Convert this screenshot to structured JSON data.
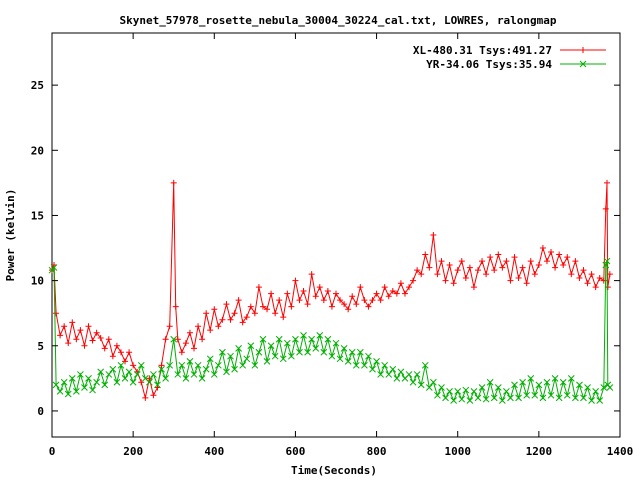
{
  "chart_data": {
    "type": "line",
    "title": "Skynet_57978_rosette_nebula_30004_30224_cal.txt, LOWRES, ralongmap",
    "xlabel": "Time(Seconds)",
    "ylabel": "Power (kelvin)",
    "xlim": [
      0,
      1400
    ],
    "ylim": [
      -2,
      29
    ],
    "x_ticks": [
      0,
      200,
      400,
      600,
      800,
      1000,
      1200,
      1400
    ],
    "y_ticks": [
      0,
      5,
      10,
      15,
      20,
      25
    ],
    "grid": false,
    "legend_position": "top-right",
    "series": [
      {
        "name": "XL-480.31 Tsys:491.27",
        "color": "#ff0000",
        "marker": "+",
        "points": [
          [
            0,
            10.8
          ],
          [
            5,
            11.2
          ],
          [
            10,
            7.5
          ],
          [
            20,
            5.8
          ],
          [
            30,
            6.5
          ],
          [
            40,
            5.2
          ],
          [
            50,
            6.8
          ],
          [
            60,
            5.5
          ],
          [
            70,
            6.2
          ],
          [
            80,
            5.0
          ],
          [
            90,
            6.5
          ],
          [
            100,
            5.4
          ],
          [
            110,
            6.0
          ],
          [
            120,
            5.6
          ],
          [
            130,
            4.8
          ],
          [
            140,
            5.5
          ],
          [
            150,
            4.2
          ],
          [
            160,
            5.0
          ],
          [
            170,
            4.5
          ],
          [
            180,
            3.8
          ],
          [
            190,
            4.5
          ],
          [
            200,
            3.5
          ],
          [
            210,
            3.0
          ],
          [
            220,
            2.2
          ],
          [
            230,
            1.0
          ],
          [
            240,
            2.5
          ],
          [
            250,
            1.2
          ],
          [
            260,
            1.8
          ],
          [
            270,
            3.5
          ],
          [
            280,
            5.5
          ],
          [
            290,
            6.5
          ],
          [
            300,
            17.5
          ],
          [
            305,
            8.0
          ],
          [
            310,
            5.5
          ],
          [
            320,
            4.5
          ],
          [
            330,
            5.2
          ],
          [
            340,
            6.0
          ],
          [
            350,
            4.8
          ],
          [
            360,
            6.5
          ],
          [
            370,
            5.5
          ],
          [
            380,
            7.5
          ],
          [
            390,
            6.2
          ],
          [
            400,
            7.8
          ],
          [
            410,
            6.5
          ],
          [
            420,
            7.0
          ],
          [
            430,
            8.2
          ],
          [
            440,
            7.0
          ],
          [
            450,
            7.5
          ],
          [
            460,
            8.5
          ],
          [
            470,
            6.8
          ],
          [
            480,
            7.2
          ],
          [
            490,
            8.0
          ],
          [
            500,
            7.5
          ],
          [
            510,
            9.5
          ],
          [
            520,
            8.0
          ],
          [
            530,
            7.8
          ],
          [
            540,
            9.0
          ],
          [
            550,
            7.5
          ],
          [
            560,
            8.5
          ],
          [
            570,
            7.2
          ],
          [
            580,
            9.0
          ],
          [
            590,
            8.0
          ],
          [
            600,
            10.0
          ],
          [
            610,
            8.5
          ],
          [
            620,
            9.2
          ],
          [
            630,
            8.2
          ],
          [
            640,
            10.5
          ],
          [
            650,
            8.8
          ],
          [
            660,
            9.5
          ],
          [
            670,
            8.5
          ],
          [
            680,
            9.2
          ],
          [
            690,
            8.0
          ],
          [
            700,
            9.0
          ],
          [
            710,
            8.5
          ],
          [
            720,
            8.2
          ],
          [
            730,
            7.8
          ],
          [
            740,
            8.8
          ],
          [
            750,
            8.2
          ],
          [
            760,
            9.5
          ],
          [
            770,
            8.5
          ],
          [
            780,
            8.0
          ],
          [
            790,
            8.5
          ],
          [
            800,
            9.0
          ],
          [
            810,
            8.5
          ],
          [
            820,
            9.5
          ],
          [
            830,
            8.8
          ],
          [
            840,
            9.2
          ],
          [
            850,
            9.0
          ],
          [
            860,
            9.8
          ],
          [
            870,
            9.0
          ],
          [
            880,
            9.5
          ],
          [
            890,
            10.0
          ],
          [
            900,
            10.8
          ],
          [
            910,
            10.5
          ],
          [
            920,
            12.0
          ],
          [
            930,
            11.0
          ],
          [
            940,
            13.5
          ],
          [
            950,
            10.5
          ],
          [
            960,
            11.5
          ],
          [
            970,
            10.0
          ],
          [
            980,
            11.2
          ],
          [
            990,
            9.8
          ],
          [
            1000,
            10.8
          ],
          [
            1010,
            11.5
          ],
          [
            1020,
            10.2
          ],
          [
            1030,
            11.0
          ],
          [
            1040,
            9.5
          ],
          [
            1050,
            10.8
          ],
          [
            1060,
            11.5
          ],
          [
            1070,
            10.5
          ],
          [
            1080,
            11.8
          ],
          [
            1090,
            10.8
          ],
          [
            1100,
            12.0
          ],
          [
            1110,
            11.0
          ],
          [
            1120,
            11.5
          ],
          [
            1130,
            10.0
          ],
          [
            1140,
            11.8
          ],
          [
            1150,
            10.2
          ],
          [
            1160,
            11.0
          ],
          [
            1170,
            9.8
          ],
          [
            1180,
            11.5
          ],
          [
            1190,
            10.5
          ],
          [
            1200,
            11.2
          ],
          [
            1210,
            12.5
          ],
          [
            1220,
            11.5
          ],
          [
            1230,
            12.2
          ],
          [
            1240,
            11.0
          ],
          [
            1250,
            12.0
          ],
          [
            1260,
            11.2
          ],
          [
            1270,
            11.8
          ],
          [
            1280,
            10.5
          ],
          [
            1290,
            11.5
          ],
          [
            1300,
            10.2
          ],
          [
            1310,
            10.8
          ],
          [
            1320,
            9.8
          ],
          [
            1330,
            10.5
          ],
          [
            1340,
            9.5
          ],
          [
            1350,
            10.2
          ],
          [
            1360,
            10.0
          ],
          [
            1365,
            15.5
          ],
          [
            1368,
            17.5
          ],
          [
            1370,
            9.5
          ],
          [
            1375,
            10.5
          ]
        ]
      },
      {
        "name": "YR-34.06 Tsys:35.94",
        "color": "#00b000",
        "marker": "x",
        "points": [
          [
            0,
            10.8
          ],
          [
            5,
            11.0
          ],
          [
            10,
            2.0
          ],
          [
            20,
            1.5
          ],
          [
            30,
            2.2
          ],
          [
            40,
            1.3
          ],
          [
            50,
            2.5
          ],
          [
            60,
            1.5
          ],
          [
            70,
            2.8
          ],
          [
            80,
            1.8
          ],
          [
            90,
            2.5
          ],
          [
            100,
            1.6
          ],
          [
            110,
            2.2
          ],
          [
            120,
            3.0
          ],
          [
            130,
            2.0
          ],
          [
            140,
            2.8
          ],
          [
            150,
            3.2
          ],
          [
            160,
            2.2
          ],
          [
            170,
            3.5
          ],
          [
            180,
            2.5
          ],
          [
            190,
            3.0
          ],
          [
            200,
            2.2
          ],
          [
            210,
            2.8
          ],
          [
            220,
            3.5
          ],
          [
            230,
            2.5
          ],
          [
            240,
            2.2
          ],
          [
            250,
            2.8
          ],
          [
            260,
            2.0
          ],
          [
            270,
            3.2
          ],
          [
            280,
            2.5
          ],
          [
            290,
            3.5
          ],
          [
            300,
            5.5
          ],
          [
            310,
            2.8
          ],
          [
            320,
            3.5
          ],
          [
            330,
            2.5
          ],
          [
            340,
            3.8
          ],
          [
            350,
            2.8
          ],
          [
            360,
            3.5
          ],
          [
            370,
            2.5
          ],
          [
            380,
            3.2
          ],
          [
            390,
            4.0
          ],
          [
            400,
            2.8
          ],
          [
            410,
            3.5
          ],
          [
            420,
            4.5
          ],
          [
            430,
            3.0
          ],
          [
            440,
            4.2
          ],
          [
            450,
            3.2
          ],
          [
            460,
            4.8
          ],
          [
            470,
            3.5
          ],
          [
            480,
            4.0
          ],
          [
            490,
            5.0
          ],
          [
            500,
            3.5
          ],
          [
            510,
            4.5
          ],
          [
            520,
            5.5
          ],
          [
            530,
            3.8
          ],
          [
            540,
            5.0
          ],
          [
            550,
            4.2
          ],
          [
            560,
            5.5
          ],
          [
            570,
            4.0
          ],
          [
            580,
            5.2
          ],
          [
            590,
            4.2
          ],
          [
            600,
            5.5
          ],
          [
            610,
            4.5
          ],
          [
            620,
            5.8
          ],
          [
            630,
            4.5
          ],
          [
            640,
            5.5
          ],
          [
            650,
            4.8
          ],
          [
            660,
            5.8
          ],
          [
            670,
            4.5
          ],
          [
            680,
            5.5
          ],
          [
            690,
            4.2
          ],
          [
            700,
            5.2
          ],
          [
            710,
            4.0
          ],
          [
            720,
            4.8
          ],
          [
            730,
            3.8
          ],
          [
            740,
            4.5
          ],
          [
            750,
            3.5
          ],
          [
            760,
            4.5
          ],
          [
            770,
            3.5
          ],
          [
            780,
            4.2
          ],
          [
            790,
            3.2
          ],
          [
            800,
            3.8
          ],
          [
            810,
            2.8
          ],
          [
            820,
            3.5
          ],
          [
            830,
            2.8
          ],
          [
            840,
            3.2
          ],
          [
            850,
            2.5
          ],
          [
            860,
            3.0
          ],
          [
            870,
            2.5
          ],
          [
            880,
            2.8
          ],
          [
            890,
            2.2
          ],
          [
            900,
            2.8
          ],
          [
            910,
            2.0
          ],
          [
            920,
            3.5
          ],
          [
            930,
            1.8
          ],
          [
            940,
            2.2
          ],
          [
            950,
            1.2
          ],
          [
            960,
            1.8
          ],
          [
            970,
            1.0
          ],
          [
            980,
            1.5
          ],
          [
            990,
            0.8
          ],
          [
            1000,
            1.5
          ],
          [
            1010,
            0.9
          ],
          [
            1020,
            1.6
          ],
          [
            1030,
            0.8
          ],
          [
            1040,
            1.5
          ],
          [
            1050,
            1.0
          ],
          [
            1060,
            1.8
          ],
          [
            1070,
            0.9
          ],
          [
            1080,
            2.2
          ],
          [
            1090,
            1.0
          ],
          [
            1100,
            1.8
          ],
          [
            1110,
            0.8
          ],
          [
            1120,
            1.5
          ],
          [
            1130,
            1.0
          ],
          [
            1140,
            2.0
          ],
          [
            1150,
            1.0
          ],
          [
            1160,
            2.2
          ],
          [
            1170,
            1.2
          ],
          [
            1180,
            2.5
          ],
          [
            1190,
            1.2
          ],
          [
            1200,
            2.0
          ],
          [
            1210,
            1.0
          ],
          [
            1220,
            2.2
          ],
          [
            1230,
            1.2
          ],
          [
            1240,
            2.5
          ],
          [
            1250,
            1.0
          ],
          [
            1260,
            2.2
          ],
          [
            1270,
            1.2
          ],
          [
            1280,
            2.5
          ],
          [
            1290,
            1.0
          ],
          [
            1300,
            2.0
          ],
          [
            1310,
            1.0
          ],
          [
            1320,
            1.8
          ],
          [
            1330,
            0.8
          ],
          [
            1340,
            1.5
          ],
          [
            1350,
            0.8
          ],
          [
            1360,
            1.8
          ],
          [
            1365,
            11.2
          ],
          [
            1368,
            11.5
          ],
          [
            1370,
            2.0
          ],
          [
            1375,
            1.8
          ]
        ]
      }
    ]
  }
}
